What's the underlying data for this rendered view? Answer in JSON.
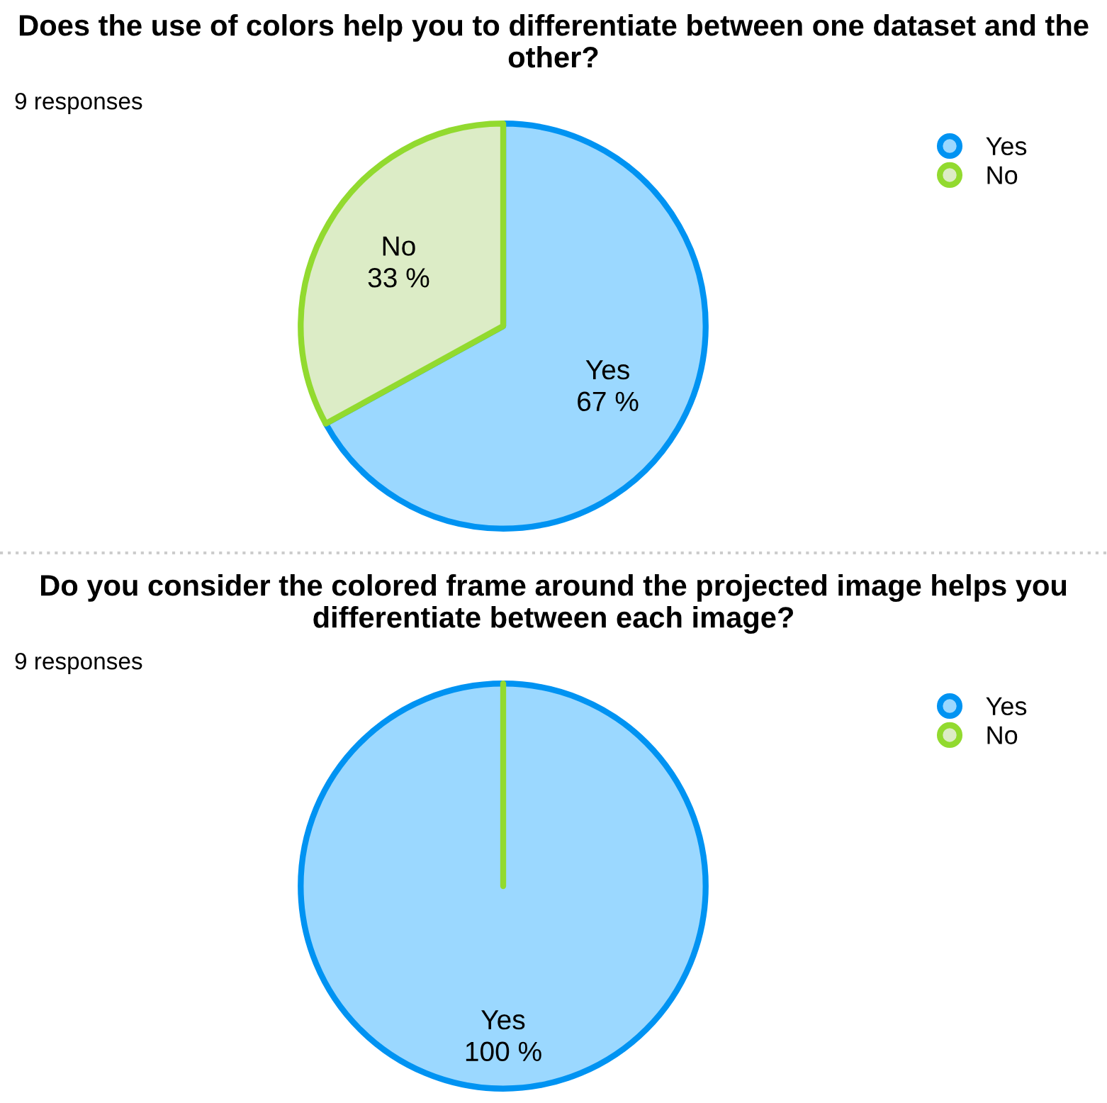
{
  "chart_data": [
    {
      "type": "pie",
      "title": "Does the use of colors help you to differentiate between one dataset and the other?",
      "annotations": [
        "9 responses"
      ],
      "categories": [
        "Yes",
        "No"
      ],
      "values": [
        67,
        33
      ],
      "colors": [
        "#9bd8ff",
        "#dcecc6"
      ],
      "value_labels": [
        "67 %",
        "33 %"
      ],
      "legend": "top right"
    },
    {
      "type": "pie",
      "title": "Do you consider the colored frame around the projected image helps you differentiate between each image?",
      "annotations": [
        "9 responses"
      ],
      "categories": [
        "Yes",
        "No"
      ],
      "values": [
        100,
        0
      ],
      "colors": [
        "#9bd8ff",
        "#dcecc6"
      ],
      "value_labels": [
        "100 %",
        null
      ],
      "legend": "top right"
    }
  ]
}
